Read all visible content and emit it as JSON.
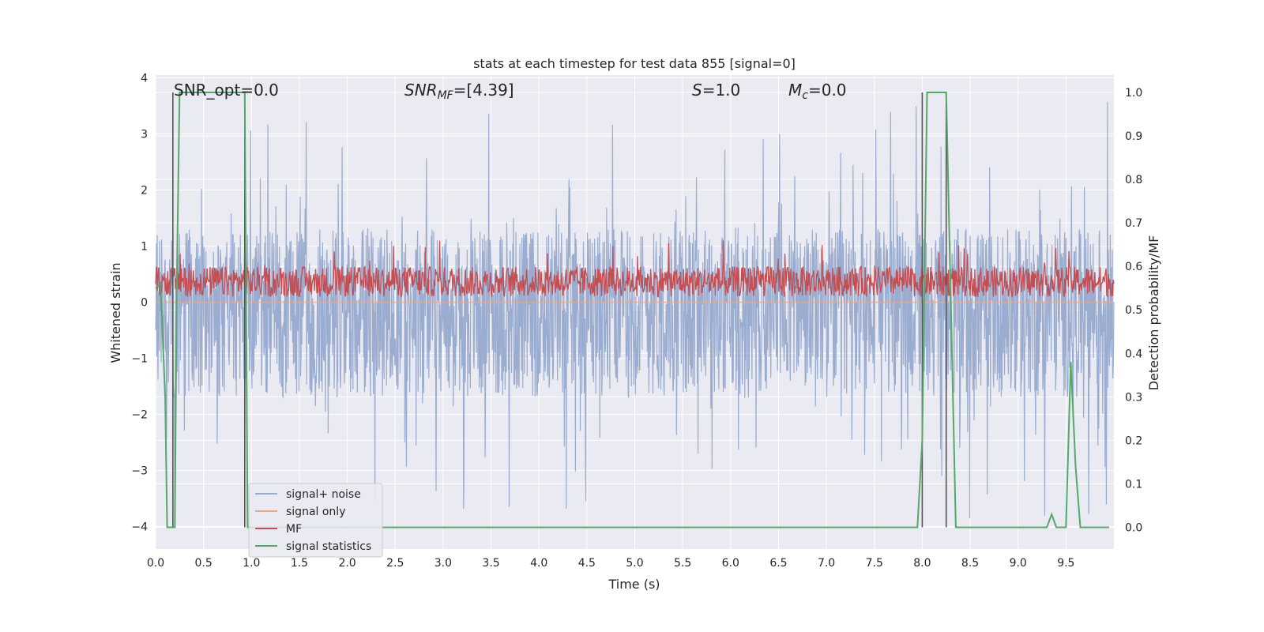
{
  "chart_data": {
    "type": "line",
    "title": "stats at each timestep for test data 855 [signal=0]",
    "xlabel": "Time (s)",
    "ylabel_left": "Whitened strain",
    "ylabel_right": "Detection probability/MF",
    "xlim": [
      0.0,
      10.0
    ],
    "ylim_left": [
      -4.4,
      4.05
    ],
    "ylim_right": [
      -0.05,
      1.04
    ],
    "xticks": [
      "0.0",
      "0.5",
      "1.0",
      "1.5",
      "2.0",
      "2.5",
      "3.0",
      "3.5",
      "4.0",
      "4.5",
      "5.0",
      "5.5",
      "6.0",
      "6.5",
      "7.0",
      "7.5",
      "8.0",
      "8.5",
      "9.0",
      "9.5"
    ],
    "yticks_left": [
      "4",
      "3",
      "2",
      "1",
      "0",
      "−1",
      "−2",
      "−3",
      "−4"
    ],
    "yticks_right": [
      "1.0",
      "0.9",
      "0.8",
      "0.7",
      "0.6",
      "0.5",
      "0.4",
      "0.3",
      "0.2",
      "0.1",
      "0.0"
    ],
    "grid": true,
    "legend_position": "lower-left",
    "annotations": {
      "snr_opt": "SNR_opt=0.0",
      "snr_mf_prefix": "SNR",
      "snr_mf_sub": "MF",
      "snr_mf_value": "=[4.39]",
      "s_prefix": "S",
      "s_value": "=1.0",
      "mc_prefix": "M",
      "mc_sub": "c",
      "mc_value": "=0.0"
    },
    "series": [
      {
        "name": "signal+ noise",
        "color": "#9AACCF",
        "axis": "left",
        "description_values": {
          "band_low": -1.7,
          "band_high": 1.3,
          "spike_max": 3.6,
          "spike_min": -3.9
        }
      },
      {
        "name": "signal only",
        "color": "#E8A98B",
        "axis": "left",
        "values_constant": 0.0
      },
      {
        "name": "MF",
        "color": "#C44E52",
        "axis": "right",
        "description_values": {
          "band_low": 0.53,
          "band_high": 0.6,
          "spike_max": 0.66
        }
      },
      {
        "name": "signal statistics",
        "color": "#55A868",
        "axis": "right",
        "x": [
          0.0,
          0.05,
          0.1,
          0.12,
          0.17,
          0.18,
          0.2,
          0.22,
          0.25,
          0.3,
          0.5,
          0.7,
          0.9,
          0.93,
          0.96,
          1.0,
          1.5,
          2.0,
          3.0,
          4.0,
          5.0,
          6.0,
          7.0,
          7.5,
          7.95,
          8.0,
          8.05,
          8.1,
          8.15,
          8.2,
          8.25,
          8.3,
          8.35,
          8.4,
          8.6,
          9.0,
          9.3,
          9.35,
          9.4,
          9.45,
          9.5,
          9.55,
          9.6,
          9.65,
          9.7,
          9.8,
          9.9,
          9.95
        ],
        "y": [
          0.55,
          0.56,
          0.3,
          0.0,
          0.0,
          0.0,
          0.0,
          0.55,
          1.0,
          1.0,
          1.0,
          1.0,
          1.0,
          1.0,
          0.0,
          0.0,
          0.0,
          0.0,
          0.0,
          0.0,
          0.0,
          0.0,
          0.0,
          0.0,
          0.0,
          0.2,
          1.0,
          1.0,
          1.0,
          1.0,
          1.0,
          0.5,
          0.0,
          0.0,
          0.0,
          0.0,
          0.0,
          0.03,
          0.0,
          0.0,
          0.0,
          0.38,
          0.14,
          0.0,
          0.0,
          0.0,
          0.0,
          0.0
        ]
      }
    ],
    "vertical_markers_x": [
      0.18,
      0.93,
      8.0,
      8.25
    ]
  }
}
